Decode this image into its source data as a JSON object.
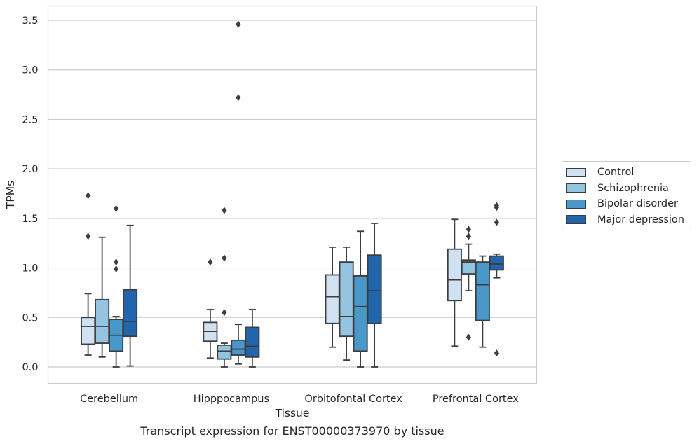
{
  "caption": "Transcript expression for ENST00000373970 by tissue",
  "chart_data": {
    "type": "box",
    "xlabel": "Tissue",
    "ylabel": "TPMs",
    "ylim": [
      -0.17,
      3.65
    ],
    "yticks": [
      0.0,
      0.5,
      1.0,
      1.5,
      2.0,
      2.5,
      3.0,
      3.5
    ],
    "ytick_labels": [
      "0.0",
      "0.5",
      "1.0",
      "1.5",
      "2.0",
      "2.5",
      "3.0",
      "3.5"
    ],
    "grid": "horizontal",
    "legend_position": "right",
    "categories": [
      "Cerebellum",
      "Hipppocampus",
      "Orbitofontal Cortex",
      "Prefrontal Cortex"
    ],
    "series": [
      {
        "name": "Control",
        "color": "#d0e1f2",
        "boxes": [
          {
            "whislo": 0.12,
            "q1": 0.23,
            "med": 0.41,
            "q3": 0.5,
            "whishi": 0.74,
            "fliers": [
              1.32,
              1.73
            ]
          },
          {
            "whislo": 0.09,
            "q1": 0.26,
            "med": 0.36,
            "q3": 0.45,
            "whishi": 0.58,
            "fliers": [
              1.06
            ]
          },
          {
            "whislo": 0.2,
            "q1": 0.44,
            "med": 0.71,
            "q3": 0.93,
            "whishi": 1.21,
            "fliers": []
          },
          {
            "whislo": 0.21,
            "q1": 0.67,
            "med": 0.88,
            "q3": 1.19,
            "whishi": 1.49,
            "fliers": []
          }
        ]
      },
      {
        "name": "Schizophrenia",
        "color": "#94c4df",
        "boxes": [
          {
            "whislo": 0.1,
            "q1": 0.24,
            "med": 0.41,
            "q3": 0.68,
            "whishi": 1.31,
            "fliers": []
          },
          {
            "whislo": 0.0,
            "q1": 0.08,
            "med": 0.16,
            "q3": 0.22,
            "whishi": 0.24,
            "fliers": [
              0.55,
              1.1,
              1.58
            ]
          },
          {
            "whislo": 0.07,
            "q1": 0.31,
            "med": 0.51,
            "q3": 1.06,
            "whishi": 1.21,
            "fliers": []
          },
          {
            "whislo": 0.77,
            "q1": 0.94,
            "med": 1.06,
            "q3": 1.08,
            "whishi": 1.24,
            "fliers": [
              0.3,
              1.32,
              1.39
            ]
          }
        ]
      },
      {
        "name": "Bipolar disorder",
        "color": "#4a98c9",
        "boxes": [
          {
            "whislo": 0.0,
            "q1": 0.16,
            "med": 0.32,
            "q3": 0.48,
            "whishi": 0.51,
            "fliers": [
              0.99,
              1.06,
              1.6
            ]
          },
          {
            "whislo": 0.03,
            "q1": 0.12,
            "med": 0.18,
            "q3": 0.27,
            "whishi": 0.43,
            "fliers": [
              2.72,
              3.46
            ]
          },
          {
            "whislo": 0.0,
            "q1": 0.16,
            "med": 0.61,
            "q3": 0.92,
            "whishi": 1.37,
            "fliers": []
          },
          {
            "whislo": 0.2,
            "q1": 0.47,
            "med": 0.83,
            "q3": 1.06,
            "whishi": 1.12,
            "fliers": []
          }
        ]
      },
      {
        "name": "Major depression",
        "color": "#2166ac",
        "boxes": [
          {
            "whislo": 0.01,
            "q1": 0.31,
            "med": 0.46,
            "q3": 0.78,
            "whishi": 1.43,
            "fliers": []
          },
          {
            "whislo": 0.0,
            "q1": 0.1,
            "med": 0.21,
            "q3": 0.4,
            "whishi": 0.58,
            "fliers": []
          },
          {
            "whislo": 0.0,
            "q1": 0.44,
            "med": 0.77,
            "q3": 1.13,
            "whishi": 1.45,
            "fliers": []
          },
          {
            "whislo": 0.9,
            "q1": 0.98,
            "med": 1.04,
            "q3": 1.12,
            "whishi": 1.14,
            "fliers": [
              0.14,
              1.46,
              1.61,
              1.63
            ]
          }
        ]
      }
    ]
  }
}
